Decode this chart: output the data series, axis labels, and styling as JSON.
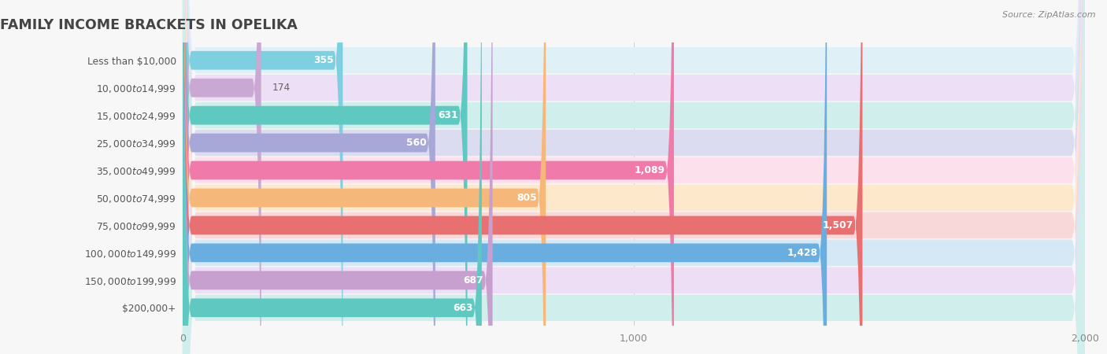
{
  "title": "FAMILY INCOME BRACKETS IN OPELIKA",
  "source": "Source: ZipAtlas.com",
  "categories": [
    "Less than $10,000",
    "$10,000 to $14,999",
    "$15,000 to $24,999",
    "$25,000 to $34,999",
    "$35,000 to $49,999",
    "$50,000 to $74,999",
    "$75,000 to $99,999",
    "$100,000 to $149,999",
    "$150,000 to $199,999",
    "$200,000+"
  ],
  "values": [
    355,
    174,
    631,
    560,
    1089,
    805,
    1507,
    1428,
    687,
    663
  ],
  "colors": [
    "#7ecfe0",
    "#c9a8d4",
    "#5fc8c0",
    "#a8a8d8",
    "#f07aaa",
    "#f5b87a",
    "#e87070",
    "#6aaee0",
    "#c8a0d0",
    "#5fc8c0"
  ],
  "bg_colors": [
    "#dff1f7",
    "#eddff5",
    "#d0eeeb",
    "#dcdcf0",
    "#fce0ec",
    "#fde8cc",
    "#f8d8d8",
    "#d5e8f5",
    "#edddf5",
    "#d0eeeb"
  ],
  "xlim": [
    0,
    2000
  ],
  "xticks": [
    0,
    1000,
    2000
  ],
  "fig_bg": "#f7f7f7",
  "title_color": "#444444",
  "label_color": "#555555",
  "value_color_outside": "#666666",
  "value_color_inside": "#ffffff",
  "value_threshold": 350,
  "bar_height": 0.68,
  "label_fontsize": 8.8,
  "value_fontsize": 8.8,
  "title_fontsize": 12.5
}
